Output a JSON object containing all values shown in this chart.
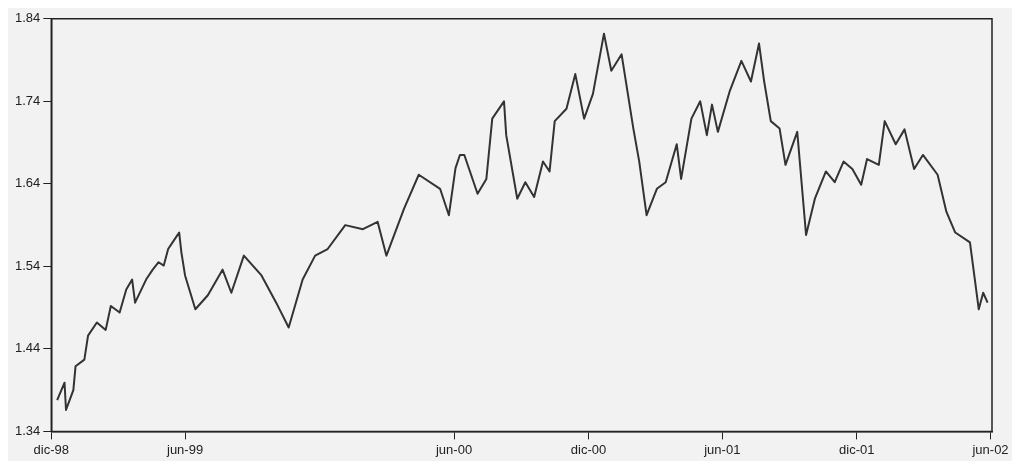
{
  "chart_data": {
    "type": "line",
    "x": [
      "1998-12-09",
      "1998-12-19",
      "1998-12-21",
      "1998-12-31",
      "1999-01-03",
      "1999-01-15",
      "1999-01-20",
      "1999-02-01",
      "1999-02-13",
      "1999-02-20",
      "1999-03-04",
      "1999-03-13",
      "1999-03-21",
      "1999-03-25",
      "1999-04-09",
      "1999-04-18",
      "1999-04-26",
      "1999-05-03",
      "1999-05-09",
      "1999-05-15",
      "1999-05-24",
      "1999-05-27",
      "1999-06-01",
      "1999-06-15",
      "1999-07-02",
      "1999-07-22",
      "1999-08-03",
      "1999-08-20",
      "1999-09-13",
      "1999-10-03",
      "1999-10-20",
      "1999-11-08",
      "1999-11-25",
      "1999-12-12",
      "2000-01-05",
      "2000-01-29",
      "2000-02-18",
      "2000-03-01",
      "2000-03-25",
      "2000-04-14",
      "2000-05-13",
      "2000-05-25",
      "2000-06-03",
      "2000-06-09",
      "2000-06-15",
      "2000-07-03",
      "2000-07-15",
      "2000-07-23",
      "2000-08-08",
      "2000-08-11",
      "2000-08-26",
      "2000-09-06",
      "2000-09-18",
      "2000-09-30",
      "2000-10-09",
      "2000-10-16",
      "2000-11-01",
      "2000-11-13",
      "2000-11-25",
      "2000-12-07",
      "2000-12-22",
      "2001-01-01",
      "2001-01-15",
      "2001-01-31",
      "2001-02-08",
      "2001-02-18",
      "2001-03-04",
      "2001-03-16",
      "2001-03-31",
      "2001-04-06",
      "2001-04-20",
      "2001-05-02",
      "2001-05-11",
      "2001-05-18",
      "2001-05-26",
      "2001-06-11",
      "2001-06-27",
      "2001-07-10",
      "2001-07-21",
      "2001-07-28",
      "2001-08-06",
      "2001-08-18",
      "2001-08-26",
      "2001-09-11",
      "2001-09-23",
      "2001-10-05",
      "2001-10-20",
      "2001-11-01",
      "2001-11-13",
      "2001-11-25",
      "2001-12-07",
      "2001-12-15",
      "2001-12-31",
      "2002-01-08",
      "2002-01-23",
      "2002-02-04",
      "2002-02-17",
      "2002-03-01",
      "2002-03-21",
      "2002-04-02",
      "2002-04-14",
      "2002-05-04",
      "2002-05-16",
      "2002-05-22",
      "2002-05-28"
    ],
    "series": [
      {
        "color": "#333333",
        "values": [
          1.378,
          1.399,
          1.366,
          1.39,
          1.419,
          1.427,
          1.456,
          1.472,
          1.463,
          1.492,
          1.484,
          1.512,
          1.524,
          1.496,
          1.524,
          1.536,
          1.545,
          1.541,
          1.561,
          1.569,
          1.581,
          1.557,
          1.529,
          1.488,
          1.505,
          1.536,
          1.508,
          1.553,
          1.529,
          1.496,
          1.466,
          1.524,
          1.553,
          1.561,
          1.59,
          1.585,
          1.594,
          1.553,
          1.61,
          1.651,
          1.634,
          1.602,
          1.659,
          1.675,
          1.675,
          1.628,
          1.646,
          1.719,
          1.74,
          1.699,
          1.622,
          1.642,
          1.624,
          1.667,
          1.655,
          1.716,
          1.731,
          1.773,
          1.719,
          1.749,
          1.822,
          1.777,
          1.797,
          1.707,
          1.667,
          1.602,
          1.634,
          1.642,
          1.688,
          1.646,
          1.719,
          1.74,
          1.699,
          1.736,
          1.703,
          1.752,
          1.789,
          1.764,
          1.81,
          1.764,
          1.716,
          1.707,
          1.663,
          1.703,
          1.578,
          1.622,
          1.655,
          1.642,
          1.667,
          1.658,
          1.639,
          1.67,
          1.663,
          1.716,
          1.688,
          1.706,
          1.658,
          1.675,
          1.651,
          1.606,
          1.581,
          1.569,
          1.488,
          1.508,
          1.496
        ]
      }
    ],
    "xlim": [
      "1998-12-01",
      "2002-06-03"
    ],
    "xticks": [
      {
        "value": "1998-12",
        "label": "dic-98"
      },
      {
        "value": "1999-06",
        "label": "jun-99"
      },
      {
        "value": "2000-06",
        "label": "jun-00"
      },
      {
        "value": "2000-12",
        "label": "dic-00"
      },
      {
        "value": "2001-06",
        "label": "jun-01"
      },
      {
        "value": "2001-12",
        "label": "dic-01"
      },
      {
        "value": "2002-06",
        "label": "jun-02"
      }
    ],
    "ylim": [
      1.34,
      1.84
    ],
    "yticks": [
      1.34,
      1.44,
      1.54,
      1.64,
      1.74,
      1.84
    ],
    "grid": false,
    "legend": false,
    "marker": "none",
    "line_style": "solid"
  }
}
